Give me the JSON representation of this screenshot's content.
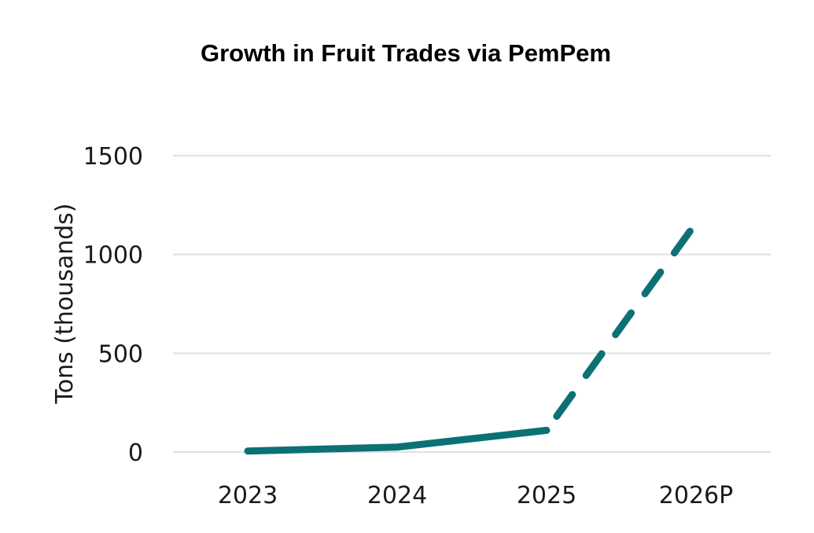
{
  "chart_data": {
    "type": "line",
    "title": "Growth in Fruit Trades via PemPem",
    "xlabel": "",
    "ylabel": "Tons (thousands)",
    "categories": [
      "2023",
      "2024",
      "2025",
      "2026P"
    ],
    "series": [
      {
        "values": [
          5,
          25,
          110,
          1160
        ],
        "actual_through_index": 2,
        "projected_from_index": 2,
        "style": {
          "actual": "solid",
          "projected": "dashed"
        }
      }
    ],
    "ylim": [
      0,
      1500
    ],
    "yticks": [
      "0",
      "500",
      "1000",
      "1500"
    ],
    "grid": true,
    "legend": "none",
    "colors": {
      "line": "#0b7175",
      "grid": "#e1e1e1",
      "text": "#1a1a1a"
    }
  }
}
